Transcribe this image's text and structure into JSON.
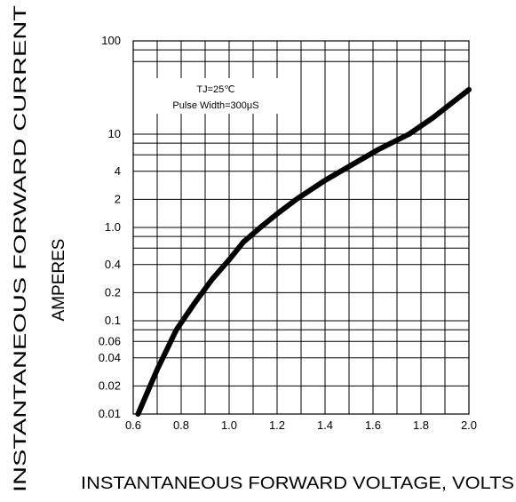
{
  "chart_data": {
    "type": "line",
    "title": "",
    "xlabel": "INSTANTANEOUS FORWARD VOLTAGE, VOLTS",
    "ylabel_line1": "INSTANTANEOUS FORWARD CURRENT",
    "ylabel_line2": "AMPERES",
    "xscale": "linear",
    "yscale": "log",
    "xlim": [
      0.6,
      2.0
    ],
    "ylim": [
      0.01,
      100
    ],
    "grid": true,
    "x_ticks": [
      0.6,
      0.8,
      1.0,
      1.2,
      1.4,
      1.6,
      1.8,
      2.0
    ],
    "x_tick_labels": [
      "0.6",
      "0.8",
      "1.0",
      "1.2",
      "1.4",
      "1.6",
      "1.8",
      "2.0"
    ],
    "y_ticks": [
      0.01,
      0.02,
      0.04,
      0.06,
      0.1,
      0.2,
      0.4,
      1.0,
      2,
      4,
      10,
      100
    ],
    "y_tick_labels": [
      "0.01",
      "0.02",
      "0.04",
      "0.06",
      "0.1",
      "0.2",
      "0.4",
      "1.0",
      "2",
      "4",
      "10",
      "100"
    ],
    "y_minor_gridlines": [
      0.06,
      0.08,
      0.6,
      0.8,
      6,
      8,
      60,
      80
    ],
    "annotation_line1": "TJ=25℃",
    "annotation_line2": "Pulse Width=300μS",
    "series": [
      {
        "x": [
          0.62,
          0.7,
          0.78,
          0.86,
          0.93,
          1.0,
          1.06,
          1.13,
          1.2,
          1.28,
          1.4,
          1.5,
          1.62,
          1.75,
          1.85,
          2.0
        ],
        "y": [
          0.01,
          0.03,
          0.08,
          0.16,
          0.28,
          0.45,
          0.7,
          1.0,
          1.4,
          2.0,
          3.2,
          4.5,
          6.8,
          10.0,
          15.0,
          30.0
        ]
      }
    ]
  }
}
